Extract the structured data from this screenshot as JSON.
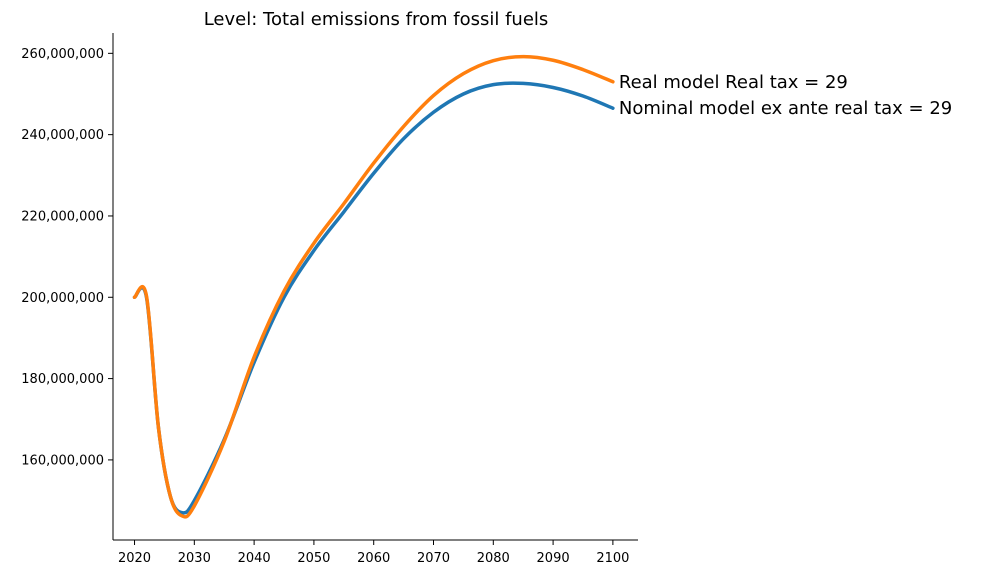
{
  "chart_data": {
    "type": "line",
    "title": "Level: Total emissions from fossil fuels",
    "xlabel": "",
    "ylabel": "",
    "xlim": [
      2016.4,
      2104.2
    ],
    "ylim": [
      140300000,
      265000000
    ],
    "grid": false,
    "x_ticks": [
      2020,
      2030,
      2040,
      2050,
      2060,
      2070,
      2080,
      2090,
      2100
    ],
    "y_ticks": [
      160000000,
      180000000,
      200000000,
      220000000,
      240000000,
      260000000
    ],
    "y_tick_labels": [
      "160,000,000",
      "180,000,000",
      "200,000,000",
      "220,000,000",
      "240,000,000",
      "260,000,000"
    ],
    "x_tick_labels": [
      "2020",
      "2030",
      "2040",
      "2050",
      "2060",
      "2070",
      "2080",
      "2090",
      "2100"
    ],
    "series": [
      {
        "name": "Nominal model ex ante real tax = 29",
        "color": "#1f77b4",
        "x": [
          2020,
          2022,
          2024,
          2026,
          2028,
          2030,
          2035,
          2040,
          2045,
          2050,
          2055,
          2060,
          2065,
          2070,
          2075,
          2080,
          2085,
          2090,
          2095,
          2100
        ],
        "y": [
          200000000,
          200000000,
          168000000,
          151000000,
          147000000,
          150000000,
          165000000,
          184000000,
          200000000,
          211500000,
          221000000,
          230500000,
          239000000,
          245500000,
          250000000,
          252300000,
          252600000,
          251600000,
          249500000,
          246500000
        ]
      },
      {
        "name": "Real model Real tax = 29",
        "color": "#ff7f0e",
        "x": [
          2020,
          2022,
          2024,
          2026,
          2028,
          2030,
          2035,
          2040,
          2045,
          2050,
          2055,
          2060,
          2065,
          2070,
          2075,
          2080,
          2085,
          2090,
          2095,
          2100
        ],
        "y": [
          200000000,
          200300000,
          168000000,
          151000000,
          146200000,
          148700000,
          164600000,
          185300000,
          201500000,
          213300000,
          223000000,
          233000000,
          242000000,
          249600000,
          255000000,
          258200000,
          259200000,
          258300000,
          256000000,
          253000000
        ]
      }
    ]
  }
}
